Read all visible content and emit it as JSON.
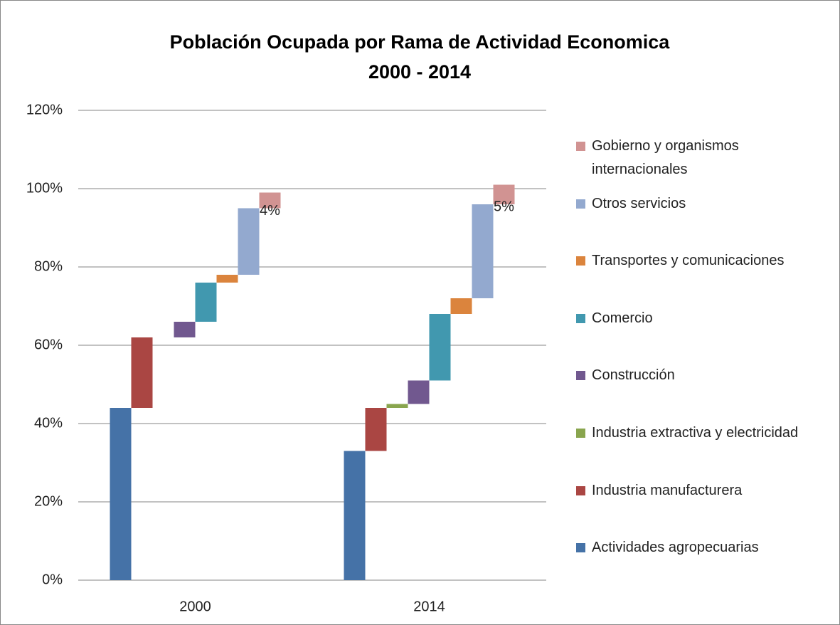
{
  "chart_data": {
    "type": "waterfall",
    "title": "Población Ocupada por Rama de Actividad Economica 2000 - 2014",
    "categories": [
      "2000",
      "2014"
    ],
    "series": [
      {
        "name": "Actividades agropecuarias",
        "color": "#4572a7",
        "values": [
          44,
          33
        ]
      },
      {
        "name": "Industria manufacturera",
        "color": "#aa4643",
        "values": [
          18,
          11
        ]
      },
      {
        "name": "Industria extractiva y electricidad",
        "color": "#89a54e",
        "values": [
          0,
          1
        ]
      },
      {
        "name": "Construcción",
        "color": "#71588f",
        "values": [
          4,
          6
        ]
      },
      {
        "name": "Comercio",
        "color": "#4198af",
        "values": [
          10,
          17
        ]
      },
      {
        "name": "Transportes y comunicaciones",
        "color": "#db843d",
        "values": [
          2,
          4
        ]
      },
      {
        "name": "Otros servicios",
        "color": "#93a9cf",
        "values": [
          17,
          24
        ]
      },
      {
        "name": "Gobierno y organismos internacionales",
        "color": "#d19392",
        "values": [
          4,
          5
        ],
        "value_labels": [
          "4%",
          "5%"
        ]
      }
    ],
    "ylim": [
      0,
      120
    ],
    "yticks": [
      {
        "value": 0,
        "label": "0%"
      },
      {
        "value": 20,
        "label": "20%"
      },
      {
        "value": 40,
        "label": "40%"
      },
      {
        "value": 60,
        "label": "60%"
      },
      {
        "value": 80,
        "label": "80%"
      },
      {
        "value": 100,
        "label": "100%"
      },
      {
        "value": 120,
        "label": "120%"
      }
    ],
    "grid": true,
    "legend": "right"
  }
}
